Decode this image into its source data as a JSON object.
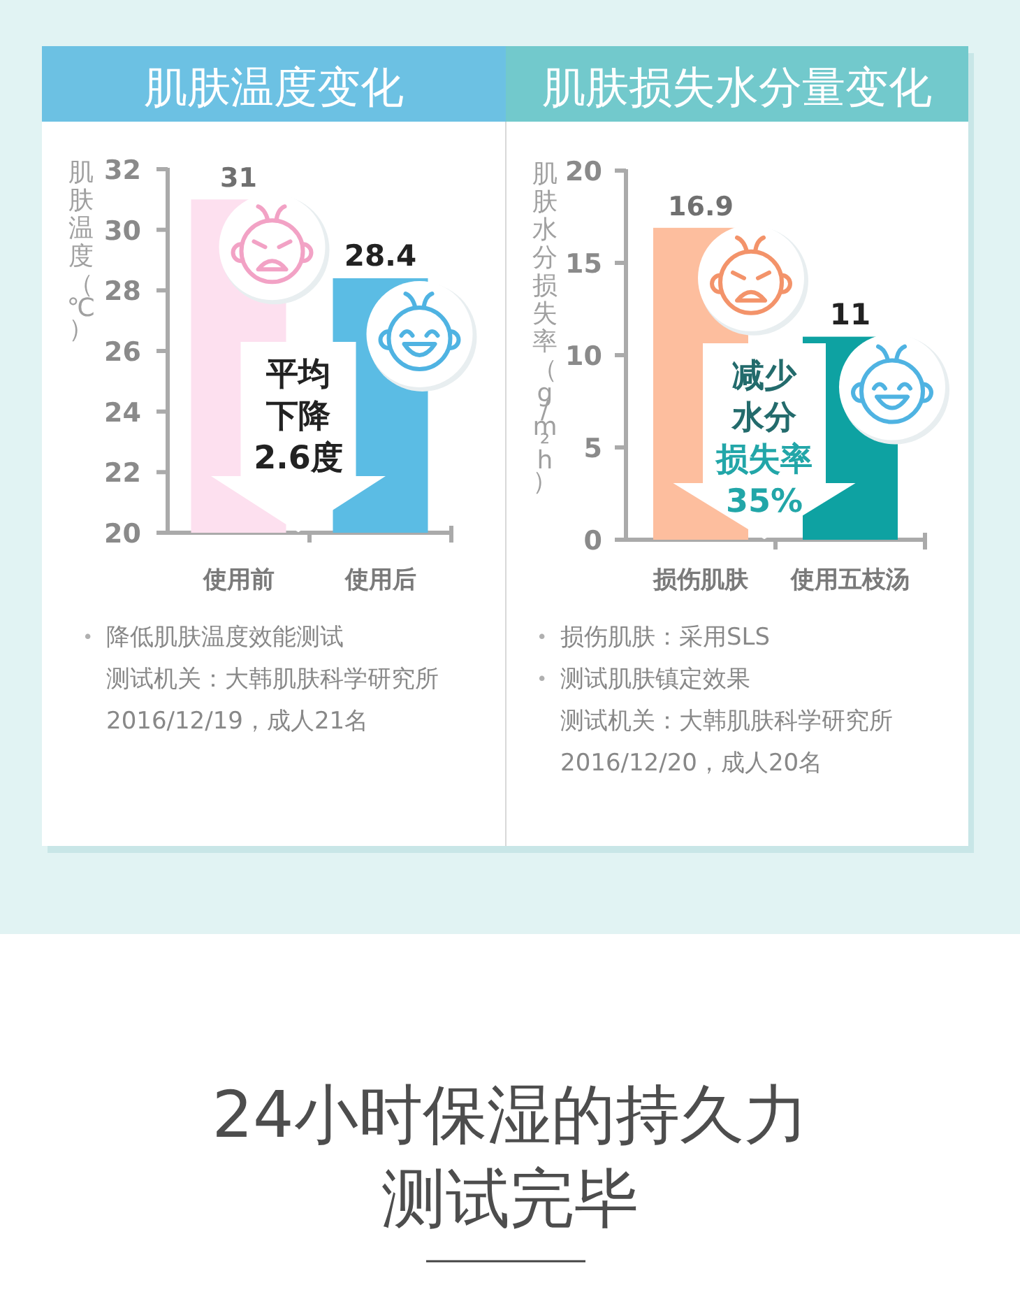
{
  "chart_data": [
    {
      "type": "bar",
      "title": "肌肤温度变化",
      "ylabel": "肌肤温度（℃）",
      "categories": [
        "使用前",
        "使用后"
      ],
      "values": [
        31,
        28.4
      ],
      "colors": [
        "#fde0ef",
        "#5bbce4"
      ],
      "ylim": [
        20,
        32
      ],
      "yticks": [
        20,
        22,
        24,
        26,
        28,
        30,
        32
      ],
      "data_labels": true,
      "annotations": [
        "平均下降2.6度",
        "• 降低肌肤温度效能测试",
        "测试机关：大韩肌肤科学研究所",
        "2016/12/19，成人21名"
      ]
    },
    {
      "type": "bar",
      "title": "肌肤损失水分量变化",
      "ylabel": "肌肤水分损失率（g/m²h）",
      "categories": [
        "损伤肌肤",
        "使用五枝汤"
      ],
      "values": [
        16.9,
        11
      ],
      "colors": [
        "#fdbe9e",
        "#0ea2a2"
      ],
      "ylim": [
        0,
        20
      ],
      "yticks": [
        0,
        5,
        10,
        15,
        20
      ],
      "data_labels": true,
      "annotations": [
        "减少水分",
        "损失率35%",
        "• 损伤肌肤：采用SLS",
        "• 测试肌肤镇定效果",
        "测试机关：大韩肌肤科学研究所",
        "2016/12/20，成人20名"
      ]
    },
    {
      "type": "other",
      "title": "24小时保湿的持久力测试完毕"
    }
  ]
}
